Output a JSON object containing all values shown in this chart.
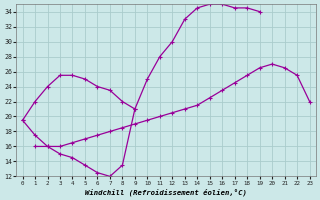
{
  "xlabel": "Windchill (Refroidissement éolien,°C)",
  "xlim": [
    -0.5,
    23.5
  ],
  "ylim": [
    12,
    35
  ],
  "xticks": [
    0,
    1,
    2,
    3,
    4,
    5,
    6,
    7,
    8,
    9,
    10,
    11,
    12,
    13,
    14,
    15,
    16,
    17,
    18,
    19,
    20,
    21,
    22,
    23
  ],
  "yticks": [
    12,
    14,
    16,
    18,
    20,
    22,
    24,
    26,
    28,
    30,
    32,
    34
  ],
  "bg_color": "#cce8e8",
  "line_color": "#990099",
  "grid_color": "#aacccc",
  "line1_x": [
    0,
    1,
    2,
    3,
    4,
    5,
    6,
    7,
    8,
    9
  ],
  "line1_y": [
    19.5,
    17.5,
    16.0,
    15.0,
    14.5,
    13.5,
    12.5,
    12.0,
    13.5,
    21.0
  ],
  "line2_x": [
    0,
    1,
    2,
    3,
    4,
    5,
    6,
    7,
    8,
    9,
    10,
    11,
    12,
    13,
    14,
    15,
    16,
    17,
    18,
    19
  ],
  "line2_y": [
    19.5,
    22.0,
    24.0,
    25.5,
    25.5,
    25.0,
    24.0,
    23.5,
    22.0,
    21.0,
    25.0,
    28.0,
    30.0,
    33.0,
    34.5,
    35.0,
    35.0,
    34.5,
    34.5,
    34.0
  ],
  "line3_x": [
    1,
    2,
    3,
    4,
    5,
    6,
    7,
    8,
    9,
    10,
    11,
    12,
    13,
    14,
    15,
    16,
    17,
    18,
    19,
    20,
    21,
    22,
    23
  ],
  "line3_y": [
    16.0,
    16.0,
    16.0,
    16.5,
    17.0,
    17.5,
    18.0,
    18.5,
    19.0,
    19.5,
    20.0,
    20.5,
    21.0,
    21.5,
    22.5,
    23.5,
    24.5,
    25.5,
    26.5,
    27.0,
    26.5,
    25.5,
    22.0
  ]
}
